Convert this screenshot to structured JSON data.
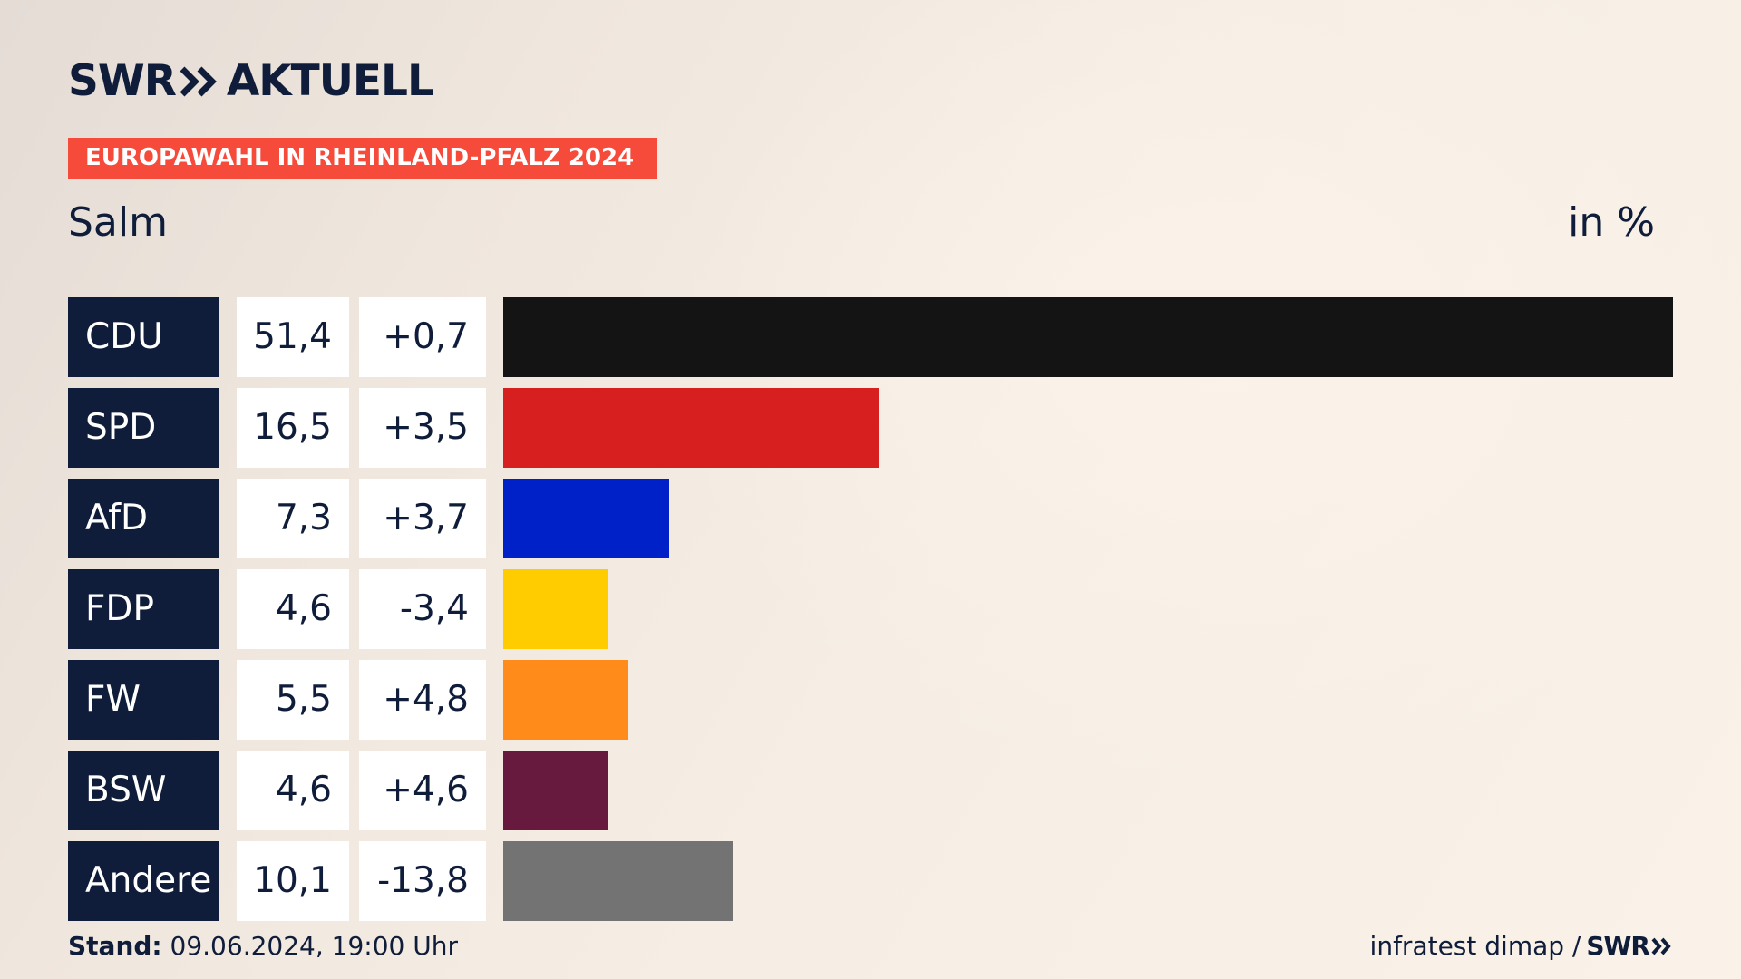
{
  "header": {
    "logo_left": "SWR",
    "logo_right": "AKTUELL",
    "badge": "EUROPAWAHL IN RHEINLAND-PFALZ 2024",
    "region": "Salm",
    "unit": "in %"
  },
  "colors": {
    "navy": "#0f1d3a",
    "accent": "#f64a3b"
  },
  "chart_data": {
    "type": "bar",
    "orientation": "horizontal",
    "title": "Salm",
    "unit": "in %",
    "xlim": [
      0,
      51.4
    ],
    "categories": [
      "CDU",
      "SPD",
      "AfD",
      "FDP",
      "FW",
      "BSW",
      "Andere"
    ],
    "values": [
      51.4,
      16.5,
      7.3,
      4.6,
      5.5,
      4.6,
      10.1
    ],
    "value_labels": [
      "51,4",
      "16,5",
      "7,3",
      "4,6",
      "5,5",
      "4,6",
      "10,1"
    ],
    "change_labels": [
      "+0,7",
      "+3,5",
      "+3,7",
      "-3,4",
      "+4,8",
      "+4,6",
      "-13,8"
    ],
    "bar_colors": [
      "#141414",
      "#d71f1f",
      "#0021c8",
      "#ffcc00",
      "#ff8c1a",
      "#671a3e",
      "#737373"
    ]
  },
  "footer": {
    "stand_label": "Stand:",
    "stand_value": "09.06.2024, 19:00 Uhr",
    "source": "infratest dimap /",
    "source_logo": "SWR"
  }
}
